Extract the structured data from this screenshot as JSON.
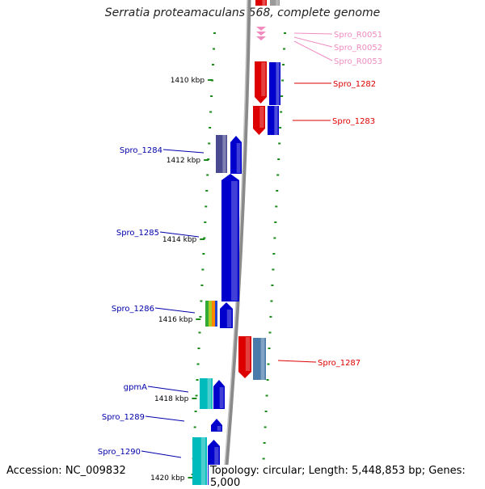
{
  "title": "Serratia proteamaculans 568, complete genome",
  "footer": {
    "accession": "Accession: NC_009832",
    "summary": "Topology: circular; Length: 5,448,853 bp; Genes: 5,000"
  },
  "ticks": [
    {
      "label": "1410 kbp"
    },
    {
      "label": "1412 kbp"
    },
    {
      "label": "1414 kbp"
    },
    {
      "label": "1416 kbp"
    },
    {
      "label": "1418 kbp"
    },
    {
      "label": "1420 kbp"
    }
  ],
  "features": [
    {
      "label": "Spro_R0051",
      "color": "#f08cc0",
      "strand": "forward",
      "kind": "rRNA"
    },
    {
      "label": "Spro_R0052",
      "color": "#f08cc0",
      "strand": "forward",
      "kind": "rRNA"
    },
    {
      "label": "Spro_R0053",
      "color": "#f08cc0",
      "strand": "forward",
      "kind": "rRNA"
    },
    {
      "label": "Spro_1282",
      "color": "#dd0000",
      "strand": "forward",
      "kind": "CDS"
    },
    {
      "label": "Spro_1283",
      "color": "#dd0000",
      "strand": "forward",
      "kind": "CDS"
    },
    {
      "label": "Spro_1284",
      "color": "#0000aa",
      "strand": "reverse",
      "kind": "CDS"
    },
    {
      "label": "Spro_1285",
      "color": "#0000aa",
      "strand": "reverse",
      "kind": "CDS"
    },
    {
      "label": "Spro_1286",
      "color": "#0000aa",
      "strand": "reverse",
      "kind": "CDS"
    },
    {
      "label": "Spro_1287",
      "color": "#dd0000",
      "strand": "forward",
      "kind": "CDS"
    },
    {
      "label": "gpmA",
      "color": "#0000aa",
      "strand": "reverse",
      "kind": "CDS"
    },
    {
      "label": "Spro_1289",
      "color": "#0000aa",
      "strand": "reverse",
      "kind": "CDS"
    },
    {
      "label": "Spro_1290",
      "color": "#0000aa",
      "strand": "reverse",
      "kind": "CDS"
    }
  ],
  "colors": {
    "backbone": "#8a8a8a",
    "tick_marks": "#1a8a1a",
    "forward_label": "#dd0000",
    "reverse_label": "#0000aa",
    "rrna_label": "#f08cc0"
  }
}
